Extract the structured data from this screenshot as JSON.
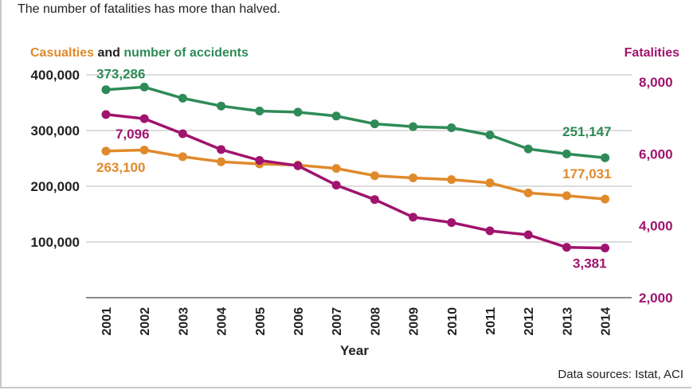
{
  "subtitle": "The number of fatalities has more than halved.",
  "source": "Data sources: Istat, ACI",
  "colors": {
    "accidents": "#2e8b57",
    "casualties": "#e08a2c",
    "fatalities": "#a0146e",
    "axis": "#666666",
    "grid": "#c8c8c8",
    "text": "#222222"
  },
  "chart_data": {
    "type": "line",
    "x": [
      "2001",
      "2002",
      "2003",
      "2004",
      "2005",
      "2006",
      "2007",
      "2008",
      "2009",
      "2010",
      "2011",
      "2012",
      "2013",
      "2014"
    ],
    "xlabel": "Year",
    "left_axis": {
      "title_parts": [
        "Casualties",
        " and ",
        "number of accidents"
      ],
      "ticks": [
        100000,
        200000,
        300000,
        400000
      ],
      "tick_labels": [
        "100,000",
        "200,000",
        "300,000",
        "400,000"
      ],
      "ylim": [
        0,
        420000
      ]
    },
    "right_axis": {
      "title": "Fatalities",
      "ticks": [
        2000,
        4000,
        6000,
        8000
      ],
      "tick_labels": [
        "2,000",
        "4,000",
        "6,000",
        "8,000"
      ],
      "ylim": [
        2000,
        8400
      ]
    },
    "grid": true,
    "series": [
      {
        "name": "number of accidents",
        "key": "accidents",
        "axis": "left",
        "values": [
          373286,
          378000,
          358000,
          344000,
          335000,
          333000,
          326000,
          312000,
          307000,
          305000,
          292000,
          267000,
          258000,
          251147
        ],
        "labels": {
          "first": "373,286",
          "last": "251,147"
        }
      },
      {
        "name": "Casualties",
        "key": "casualties",
        "axis": "left",
        "values": [
          263100,
          265000,
          253000,
          244000,
          240000,
          238000,
          232000,
          219000,
          215000,
          212000,
          206000,
          188000,
          183000,
          177031
        ],
        "labels": {
          "first": "263,100",
          "last": "177,031"
        }
      },
      {
        "name": "Fatalities",
        "key": "fatalities",
        "axis": "right",
        "values": [
          7096,
          6980,
          6560,
          6120,
          5820,
          5670,
          5130,
          4730,
          4240,
          4090,
          3860,
          3750,
          3400,
          3381
        ],
        "labels": {
          "first": "7,096",
          "last": "3,381"
        }
      }
    ]
  }
}
